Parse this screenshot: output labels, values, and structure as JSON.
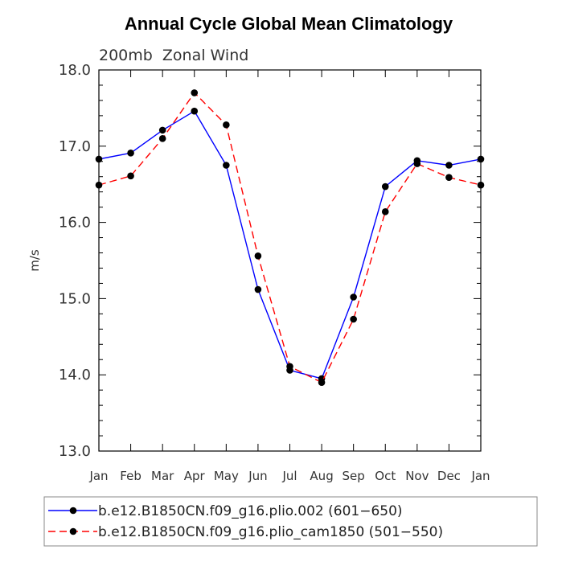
{
  "chart_data": {
    "type": "line",
    "title": "Annual Cycle Global Mean Climatology",
    "subtitle": "200mb  Zonal Wind",
    "xlabel": "",
    "ylabel": "m/s",
    "ylim": [
      13.0,
      18.0
    ],
    "yticks": [
      "13.0",
      "14.0",
      "15.0",
      "16.0",
      "17.0",
      "18.0"
    ],
    "categories": [
      "Jan",
      "Feb",
      "Mar",
      "Apr",
      "May",
      "Jun",
      "Jul",
      "Aug",
      "Sep",
      "Oct",
      "Nov",
      "Dec",
      "Jan"
    ],
    "grid": false,
    "legend_position": "bottom",
    "series": [
      {
        "name": "b.e12.B1850CN.f09_g16.plio.002 (601−650)",
        "color": "#0000ff",
        "line_style": "solid",
        "values": [
          16.83,
          16.91,
          17.21,
          17.46,
          16.75,
          15.12,
          14.06,
          13.95,
          15.02,
          16.47,
          16.81,
          16.75,
          16.83
        ]
      },
      {
        "name": "b.e12.B1850CN.f09_g16.plio_cam1850 (501−550)",
        "color": "#ff0000",
        "line_style": "dashed",
        "values": [
          16.49,
          16.61,
          17.1,
          17.7,
          17.28,
          15.56,
          14.11,
          13.9,
          14.73,
          16.14,
          16.77,
          16.59,
          16.49
        ]
      }
    ]
  }
}
